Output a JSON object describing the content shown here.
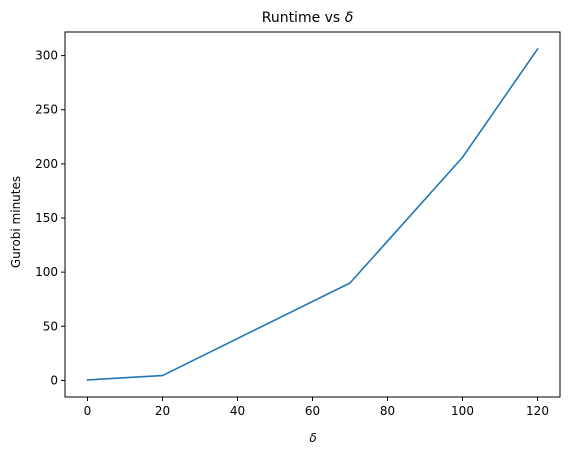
{
  "chart_data": {
    "type": "line",
    "title_prefix": "Runtime vs ",
    "title_symbol": "δ",
    "xlabel": "δ",
    "ylabel": "Gurobi minutes",
    "x": [
      0,
      20,
      70,
      100,
      120
    ],
    "series": [
      {
        "values": [
          0.5,
          4.5,
          90,
          206,
          306
        ],
        "color": "#1f77b4"
      }
    ],
    "xlim": [
      -6,
      126
    ],
    "ylim": [
      -15.3,
      321.8
    ],
    "xticks": [
      0,
      20,
      40,
      60,
      80,
      100,
      120
    ],
    "yticks": [
      0,
      50,
      100,
      150,
      200,
      250,
      300
    ],
    "grid": false,
    "legend": "none"
  }
}
